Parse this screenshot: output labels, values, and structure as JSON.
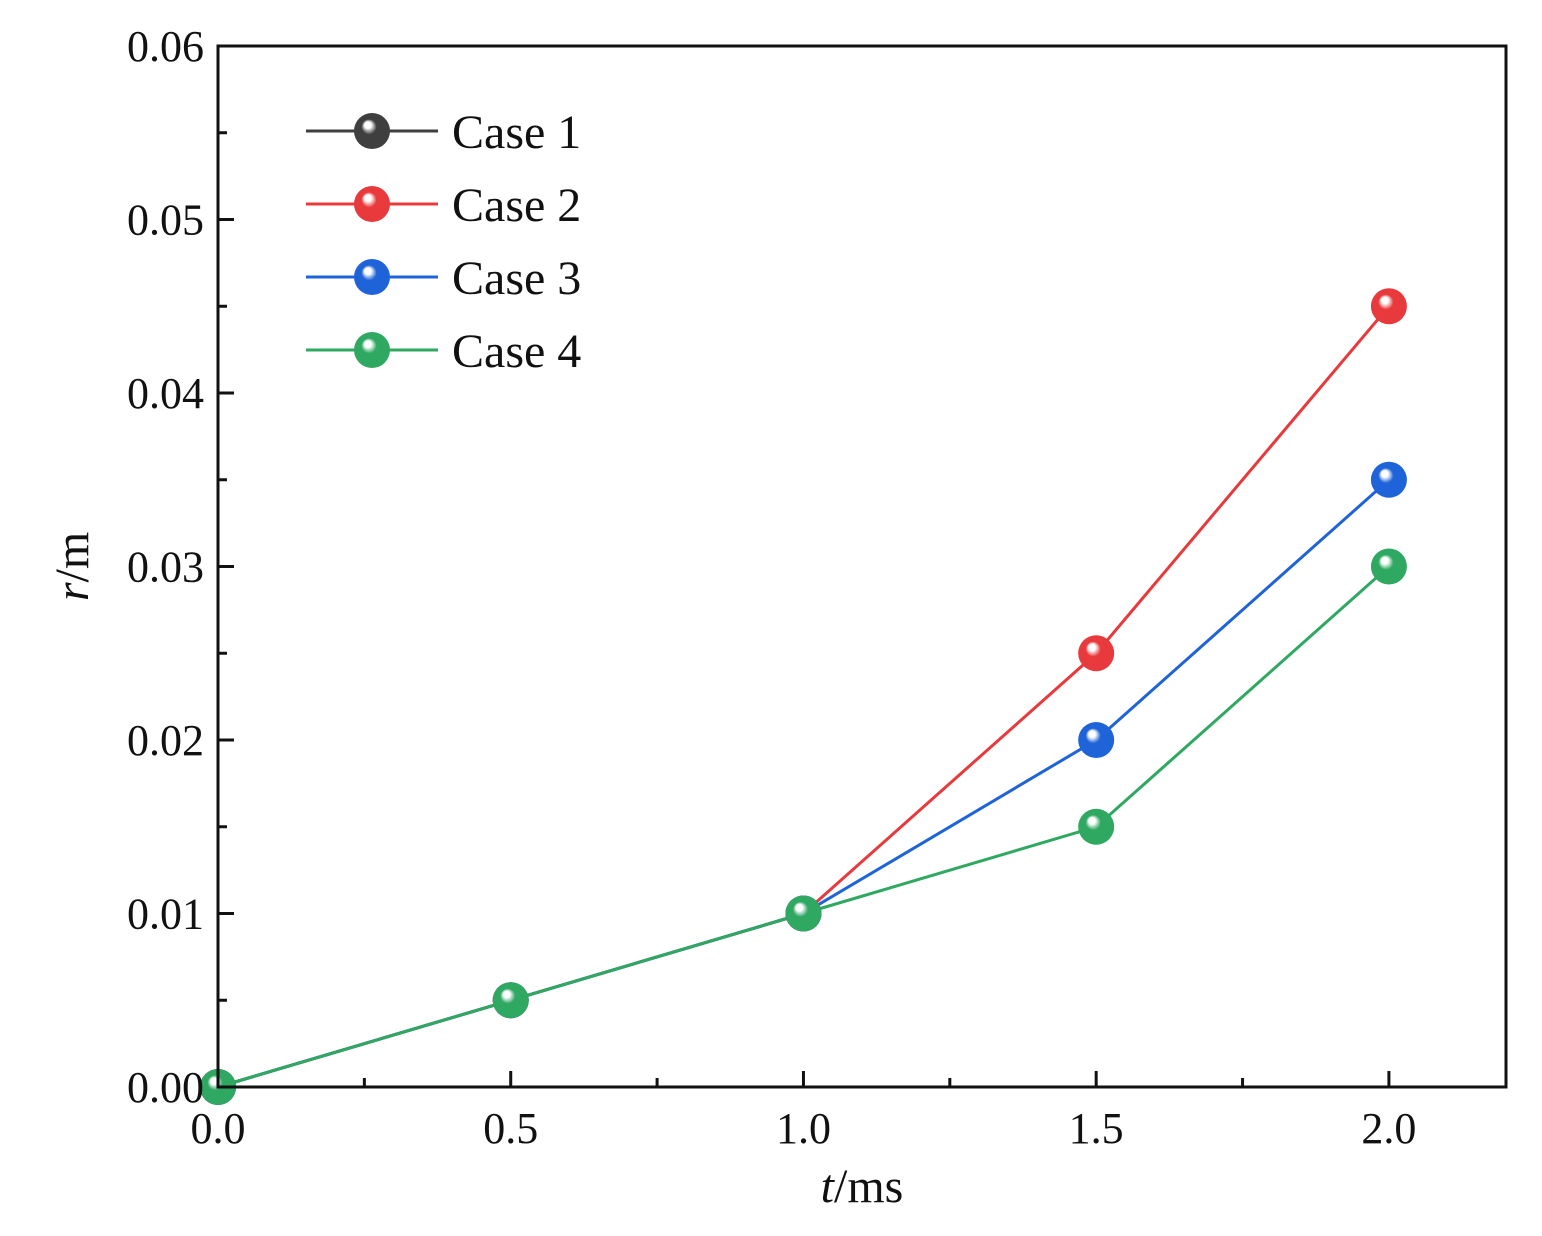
{
  "chart_data": {
    "type": "line",
    "title": "",
    "xlabel_var": "t",
    "xlabel_unit": "/ms",
    "ylabel_var": "r",
    "ylabel_unit": "/m",
    "xlim": [
      0,
      2.2
    ],
    "ylim": [
      0,
      0.06
    ],
    "xticks": [
      0.0,
      0.5,
      1.0,
      1.5,
      2.0
    ],
    "xtick_labels": [
      "0.0",
      "0.5",
      "1.0",
      "1.5",
      "2.0"
    ],
    "xminor": [
      0.25,
      0.75,
      1.25,
      1.75
    ],
    "yticks": [
      0.0,
      0.01,
      0.02,
      0.03,
      0.04,
      0.05,
      0.06
    ],
    "ytick_labels": [
      "0.00",
      "0.01",
      "0.02",
      "0.03",
      "0.04",
      "0.05",
      "0.06"
    ],
    "yminor": [
      0.005,
      0.015,
      0.025,
      0.035,
      0.045,
      0.055
    ],
    "grid": false,
    "legend_position": "top-left",
    "series": [
      {
        "name": "Case 1",
        "color": "#3f3f3f",
        "x": [
          0.0,
          0.5,
          1.0
        ],
        "y": [
          0.0,
          0.005,
          0.01
        ]
      },
      {
        "name": "Case 2",
        "color": "#e8393c",
        "x": [
          0.0,
          0.5,
          1.0,
          1.5,
          2.0
        ],
        "y": [
          0.0,
          0.005,
          0.01,
          0.025,
          0.045
        ]
      },
      {
        "name": "Case 3",
        "color": "#1f63d8",
        "x": [
          0.0,
          0.5,
          1.0,
          1.5,
          2.0
        ],
        "y": [
          0.0,
          0.005,
          0.01,
          0.02,
          0.035
        ]
      },
      {
        "name": "Case 4",
        "color": "#2fa862",
        "x": [
          0.0,
          0.5,
          1.0,
          1.5,
          2.0
        ],
        "y": [
          0.0,
          0.005,
          0.01,
          0.015,
          0.03
        ]
      }
    ]
  }
}
